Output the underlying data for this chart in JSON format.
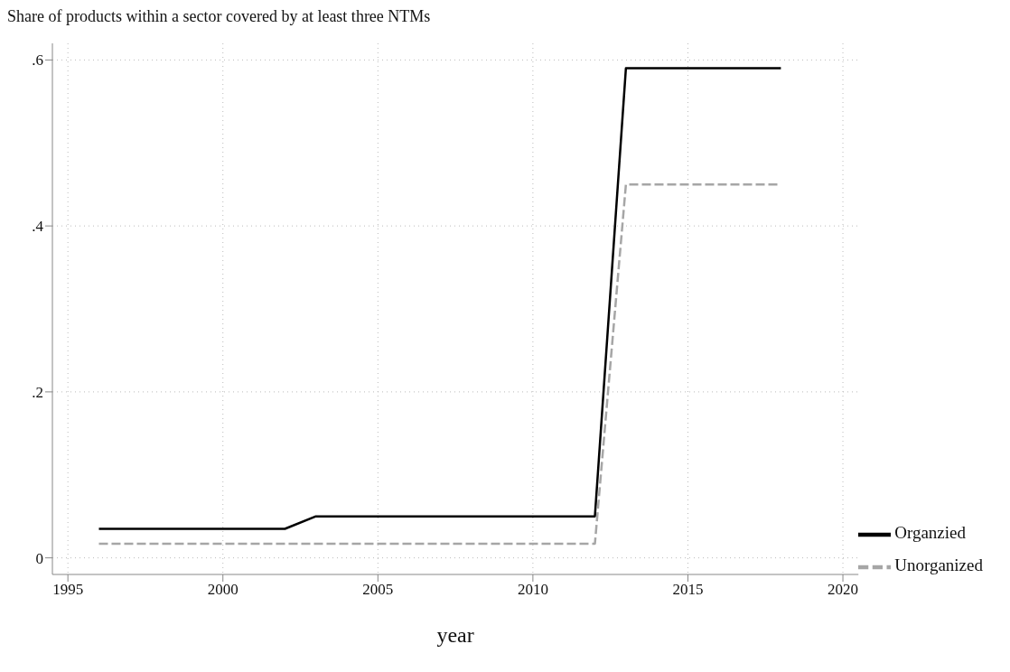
{
  "chart_data": {
    "type": "line",
    "title": "Share of products within a sector covered by at least three NTMs",
    "xlabel": "year",
    "x": [
      1996,
      2002,
      2003,
      2012,
      2013,
      2018
    ],
    "series": [
      {
        "name": "Organzied",
        "color": "#000000",
        "values": [
          0.035,
          0.035,
          0.05,
          0.05,
          0.59,
          0.59
        ],
        "line_style": "solid"
      },
      {
        "name": "Unorganized",
        "color": "#a6a6a6",
        "values": [
          0.017,
          0.017,
          0.017,
          0.017,
          0.45,
          0.45
        ],
        "line_style": "dashed"
      }
    ],
    "xlim": [
      1994.5,
      2020.5
    ],
    "xticks": [
      1995,
      2000,
      2005,
      2010,
      2015,
      2020
    ],
    "ylim": [
      -0.02,
      0.62
    ],
    "yticks": [
      {
        "value": 0,
        "label": "0"
      },
      {
        "value": 0.2,
        "label": ".2"
      },
      {
        "value": 0.4,
        "label": ".4"
      },
      {
        "value": 0.6,
        "label": ".6"
      }
    ],
    "grid": true,
    "legend": "bottom right",
    "marker": "none"
  }
}
